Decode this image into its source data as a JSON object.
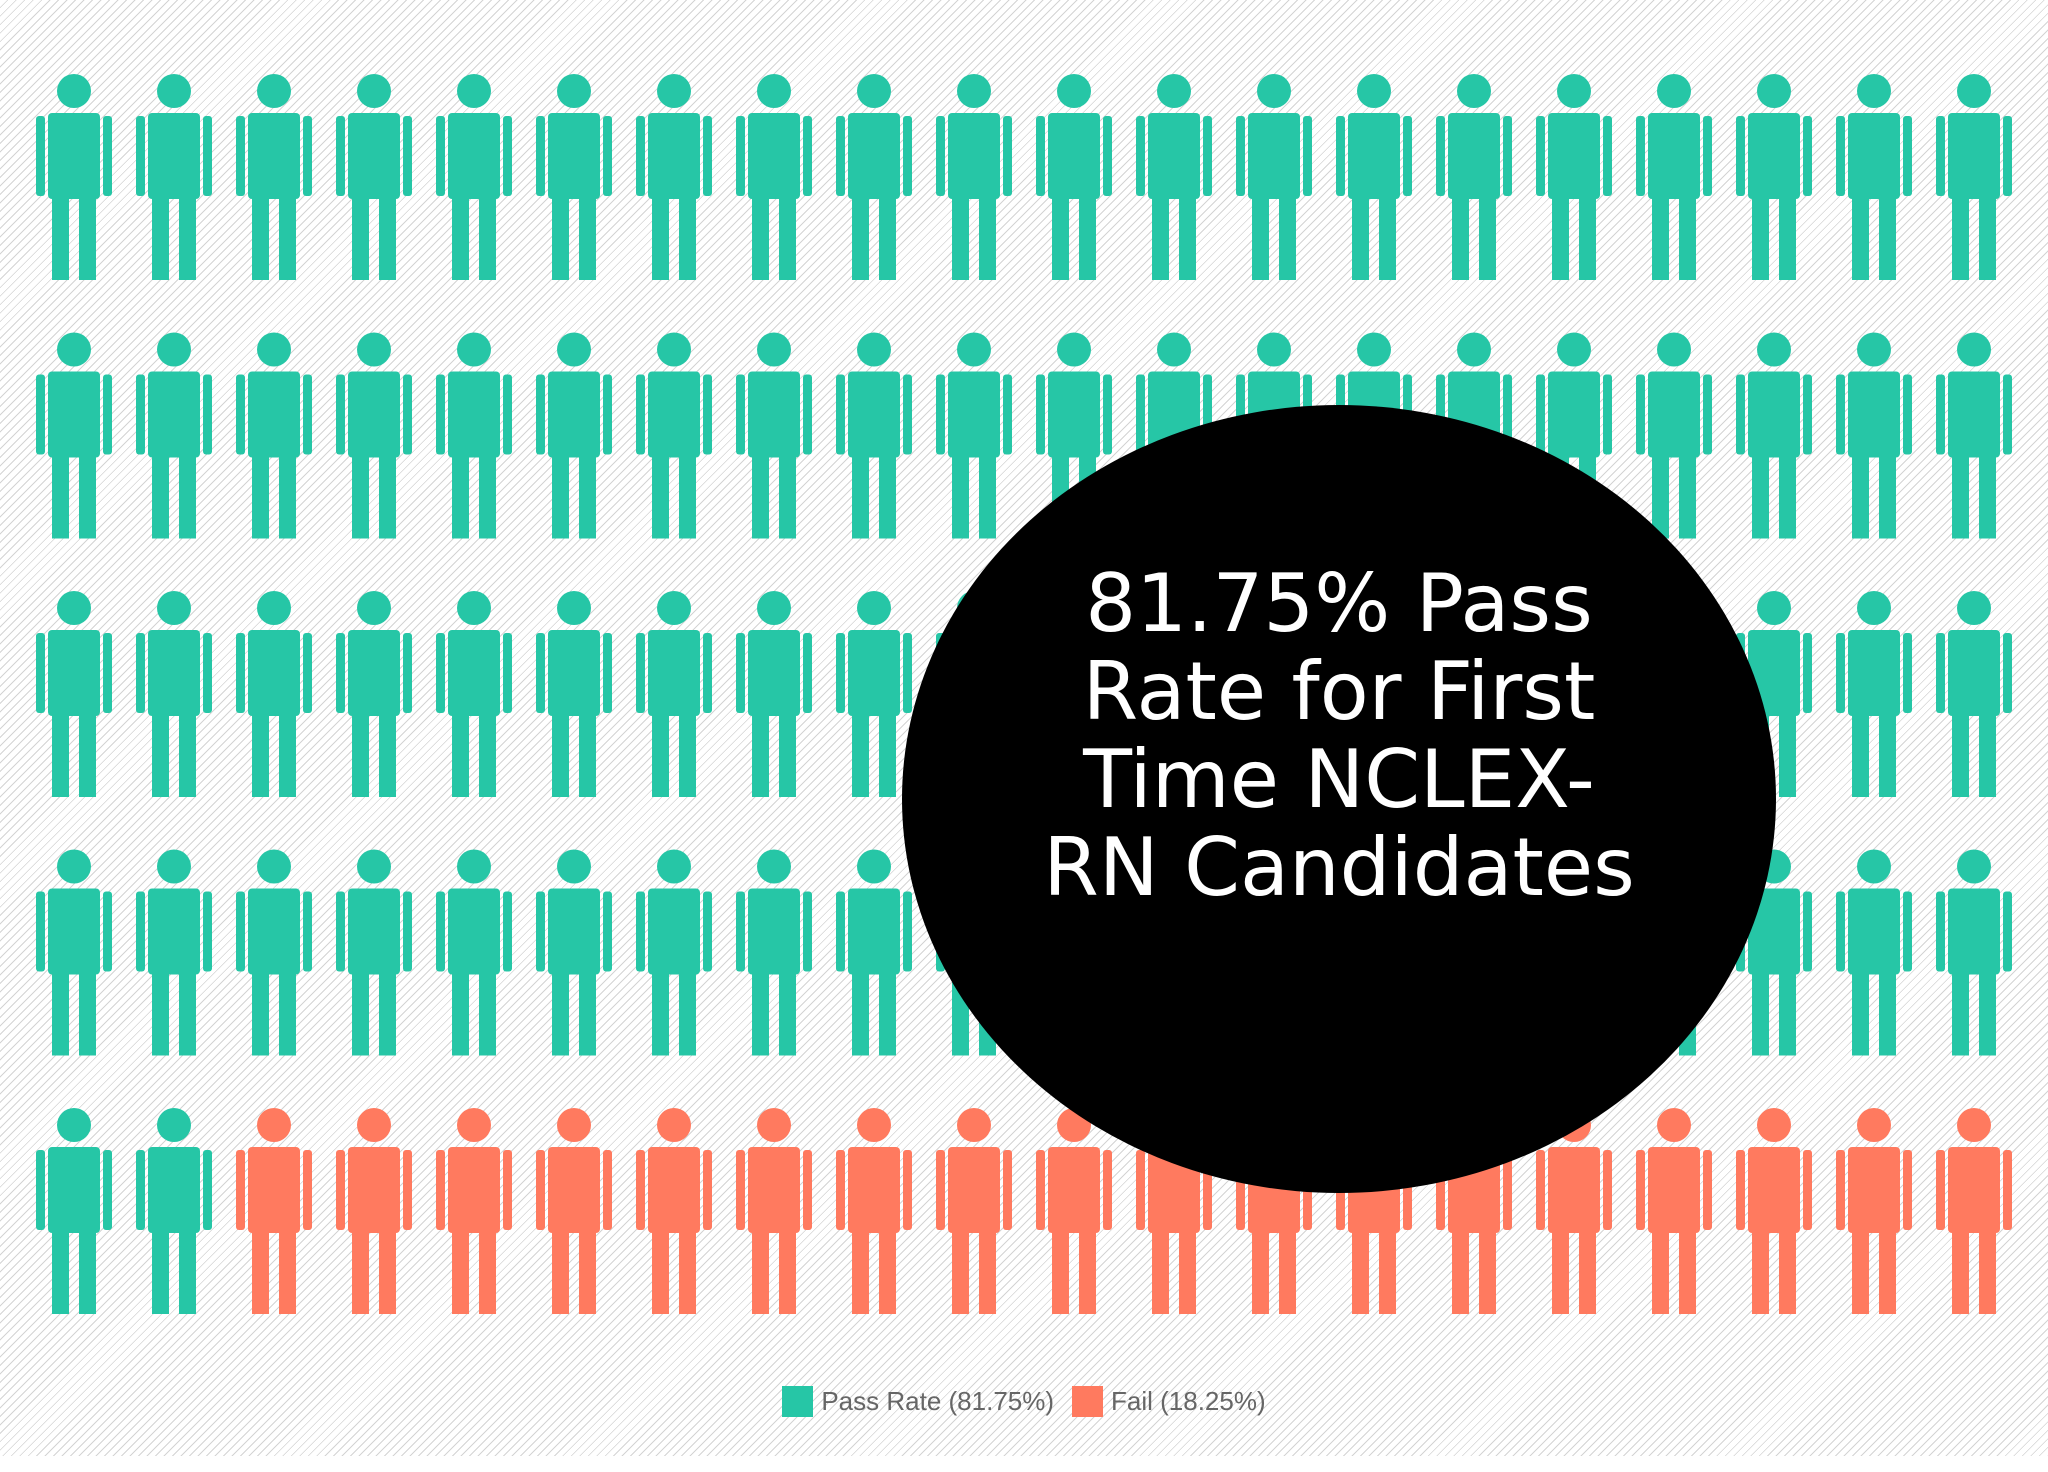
{
  "chart_data": {
    "type": "pictograph",
    "annotation": "81.75% Pass Rate for First Time NCLEX-RN Candidates",
    "series": [
      {
        "name": "Pass Rate (81.75%)",
        "color": "#26c6a6",
        "value": 81.75
      },
      {
        "name": "Fail (18.25%)",
        "color": "#ff7a5f",
        "value": 18.25
      }
    ],
    "legend": "bottom"
  }
}
